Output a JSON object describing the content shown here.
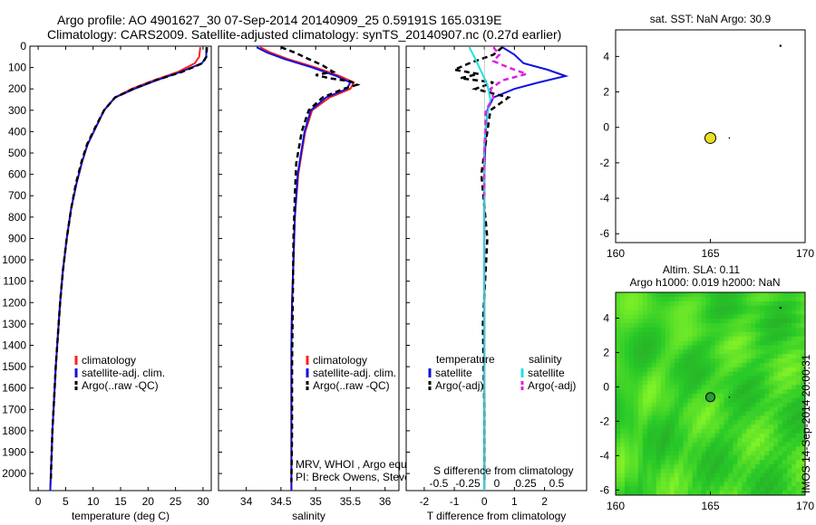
{
  "title": {
    "line1": "Argo profile: AO 4901627_30 07-Sep-2014 20140909_25 0.59191S 165.0319E",
    "line2": "Climatology: CARS2009. Satellite-adjusted climatology: synTS_20140907.nc (0.27d earlier)"
  },
  "watermark": "IMOS 14-Sep-2014 20:00:31",
  "colors": {
    "climatology": "#ff2020",
    "satellite": "#1010e0",
    "argo": "#000000",
    "salinity_sat": "#20e0e0",
    "salinity_argo": "#e020e0",
    "map_green": "#3fd62a",
    "marker": "#e8e020"
  },
  "chart_data": [
    {
      "type": "line",
      "name": "temperature-profile",
      "xlabel": "temperature (deg C)",
      "ylabel": "",
      "xlim": [
        -1.5,
        31.5
      ],
      "ylim": [
        2080,
        0
      ],
      "xticks": [
        "0",
        "5",
        "10",
        "15",
        "20",
        "25",
        "30"
      ],
      "yticks": [
        "0",
        "100",
        "200",
        "300",
        "400",
        "500",
        "600",
        "700",
        "800",
        "900",
        "1000",
        "1100",
        "1200",
        "1300",
        "1400",
        "1500",
        "1600",
        "1700",
        "1800",
        "1900",
        "2000"
      ],
      "legend": [
        "climatology",
        "satellite-adj. clim.",
        "Argo(..raw -QC)"
      ],
      "series": [
        {
          "name": "climatology",
          "color": "#ff2020",
          "style": "solid",
          "x": [
            29.5,
            29.3,
            28.5,
            25.5,
            21,
            17,
            14,
            12,
            10.5,
            9,
            8,
            7,
            6,
            5.2,
            4.5,
            4,
            3.6,
            3.2,
            2.9,
            2.6,
            2.4,
            2.2
          ],
          "y": [
            5,
            50,
            80,
            120,
            160,
            200,
            240,
            300,
            380,
            460,
            540,
            640,
            760,
            900,
            1050,
            1200,
            1350,
            1500,
            1650,
            1800,
            1950,
            2080
          ]
        },
        {
          "name": "satellite-adj. clim.",
          "color": "#1010e0",
          "style": "solid",
          "x": [
            30.6,
            30.6,
            29.8,
            26,
            21.5,
            17.5,
            14,
            12,
            10.5,
            9,
            8,
            7,
            6,
            5.2,
            4.5,
            4,
            3.6,
            3.2,
            2.9,
            2.6,
            2.4,
            2.2
          ],
          "y": [
            5,
            50,
            80,
            120,
            160,
            200,
            240,
            300,
            380,
            460,
            540,
            640,
            760,
            900,
            1050,
            1200,
            1350,
            1500,
            1650,
            1800,
            1950,
            2080
          ]
        },
        {
          "name": "Argo(..raw -QC)",
          "color": "#000000",
          "style": "dashed",
          "x": [
            30.7,
            30.6,
            29.9,
            26.2,
            21.3,
            17.3,
            14,
            12,
            10.4,
            8.9,
            7.9,
            6.9,
            6,
            5.2,
            4.5,
            4,
            3.6,
            3.2,
            2.9,
            2.6,
            2.4,
            2.3
          ],
          "y": [
            5,
            50,
            80,
            120,
            160,
            200,
            240,
            300,
            380,
            460,
            540,
            640,
            760,
            900,
            1050,
            1200,
            1350,
            1500,
            1650,
            1800,
            1950,
            2040
          ]
        }
      ]
    },
    {
      "type": "line",
      "name": "salinity-profile",
      "xlabel": "salinity",
      "xlim": [
        33.6,
        36.2
      ],
      "ylim": [
        2080,
        0
      ],
      "xticks": [
        "34",
        "34.5",
        "35",
        "35.5",
        "36"
      ],
      "legend": [
        "climatology",
        "satellite-adj. clim.",
        "Argo(..raw -QC)"
      ],
      "annotation": [
        "MRV, WHOI , Argo equivalent",
        "PI: Breck Owens, Steve Jayne, P.E. Robbins"
      ],
      "series": [
        {
          "name": "climatology",
          "color": "#ff2020",
          "style": "solid",
          "x": [
            34.2,
            34.35,
            34.6,
            35.0,
            35.35,
            35.55,
            35.5,
            35.2,
            34.95,
            34.85,
            34.8,
            34.75,
            34.7,
            34.68,
            34.66,
            34.65,
            34.65,
            34.65,
            34.65
          ],
          "y": [
            5,
            30,
            60,
            100,
            140,
            170,
            200,
            240,
            300,
            400,
            500,
            600,
            800,
            1000,
            1200,
            1400,
            1600,
            1800,
            2080
          ]
        },
        {
          "name": "satellite-adj. clim.",
          "color": "#1010e0",
          "style": "solid",
          "x": [
            34.15,
            34.3,
            34.55,
            34.95,
            35.3,
            35.5,
            35.45,
            35.15,
            34.93,
            34.84,
            34.79,
            34.74,
            34.7,
            34.68,
            34.66,
            34.65,
            34.65,
            34.65,
            34.65
          ],
          "y": [
            5,
            30,
            60,
            100,
            140,
            170,
            200,
            240,
            300,
            400,
            500,
            600,
            800,
            1000,
            1200,
            1400,
            1600,
            1800,
            2080
          ]
        },
        {
          "name": "Argo(..raw -QC)",
          "color": "#000000",
          "style": "dashed",
          "x": [
            34.5,
            34.7,
            34.9,
            35.1,
            35.25,
            35.0,
            35.2,
            35.5,
            35.6,
            35.4,
            35.1,
            34.9,
            34.8,
            34.72,
            34.7,
            34.68,
            34.67,
            34.66,
            34.66,
            34.65
          ],
          "y": [
            5,
            30,
            60,
            90,
            120,
            135,
            150,
            165,
            180,
            200,
            240,
            300,
            400,
            550,
            700,
            900,
            1200,
            1500,
            1800,
            2040
          ]
        }
      ]
    },
    {
      "type": "line",
      "name": "difference-profile",
      "xlabel": "T difference from climatology",
      "xlim": [
        -2.6,
        3.4
      ],
      "ylim": [
        2080,
        0
      ],
      "xticks": [
        "-2",
        "-1",
        "0",
        "1",
        "2"
      ],
      "secondary_xlabel": "S difference from climatology",
      "secondary_xticks": [
        "-0.5",
        "-0.25",
        "0",
        "0.25",
        "0.5"
      ],
      "legend_titles": [
        "temperature",
        "salinity"
      ],
      "legend": [
        "satellite",
        "Argo(-adj)",
        "satellite",
        "Argo(-adj)"
      ],
      "series": [
        {
          "name": "T satellite",
          "color": "#1010e0",
          "style": "solid",
          "x": [
            0.6,
            1.0,
            1.3,
            2.1,
            2.7,
            1.8,
            1.0,
            0.3,
            0.1,
            0.05,
            0,
            0,
            0,
            0,
            0
          ],
          "y": [
            5,
            40,
            80,
            110,
            140,
            170,
            200,
            240,
            300,
            400,
            600,
            900,
            1300,
            1700,
            2080
          ]
        },
        {
          "name": "T Argo(-adj)",
          "color": "#000000",
          "style": "dashed",
          "x": [
            0.6,
            0.3,
            -0.5,
            -1.0,
            -0.2,
            -0.8,
            0.3,
            -0.3,
            0.8,
            0.2,
            0.1,
            -0.1,
            0.1,
            -0.05,
            0,
            0
          ],
          "y": [
            5,
            40,
            80,
            110,
            130,
            150,
            170,
            200,
            240,
            300,
            400,
            600,
            900,
            1300,
            1700,
            2040
          ]
        },
        {
          "name": "S satellite",
          "color": "#20e0e0",
          "style": "solid",
          "x": [
            -0.5,
            -0.3,
            -0.1,
            0.1,
            0.2,
            0.1,
            0,
            0,
            0,
            0,
            0
          ],
          "y": [
            5,
            60,
            120,
            180,
            250,
            320,
            450,
            700,
            1100,
            1600,
            2080
          ]
        },
        {
          "name": "S Argo(-adj)",
          "color": "#e020e0",
          "style": "dashed",
          "x": [
            0.3,
            0.5,
            0.3,
            0.8,
            1.4,
            0.6,
            0.2,
            0.3,
            0.05,
            0,
            0
          ],
          "y": [
            5,
            40,
            70,
            100,
            130,
            160,
            200,
            240,
            300,
            500,
            700
          ]
        }
      ]
    },
    {
      "type": "scatter",
      "name": "sst-map",
      "title": "sat. SST: NaN Argo: 30.9",
      "xlim": [
        160,
        170
      ],
      "ylim": [
        -6.5,
        5.5
      ],
      "xticks": [
        "160",
        "165",
        "170"
      ],
      "yticks": [
        "4",
        "2",
        "0",
        "-2",
        "-4",
        "-6"
      ],
      "points": [
        {
          "x": 165.0,
          "y": -0.6
        }
      ]
    },
    {
      "type": "heatmap",
      "name": "sla-map",
      "title": [
        "Altim. SLA: 0.11",
        "Argo h1000: 0.019 h2000: NaN"
      ],
      "xlim": [
        160,
        170
      ],
      "ylim": [
        -6.3,
        5.5
      ],
      "xticks": [
        "160",
        "165",
        "170"
      ],
      "yticks": [
        "4",
        "2",
        "0",
        "-2",
        "-4",
        "-6"
      ],
      "points": [
        {
          "x": 165.0,
          "y": -0.6
        }
      ]
    }
  ]
}
